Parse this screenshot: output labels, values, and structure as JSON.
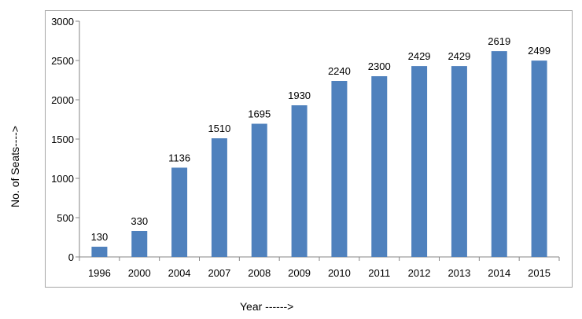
{
  "chart_data": {
    "type": "bar",
    "categories": [
      "1996",
      "2000",
      "2004",
      "2007",
      "2008",
      "2009",
      "2010",
      "2011",
      "2012",
      "2013",
      "2014",
      "2015"
    ],
    "values": [
      130,
      330,
      1136,
      1510,
      1695,
      1930,
      2240,
      2300,
      2429,
      2429,
      2619,
      2499
    ],
    "data_labels": [
      "130",
      "330",
      "1136",
      "1510",
      "1695",
      "1930",
      "2240",
      "2300",
      "2429",
      "2429",
      "2619",
      "2499"
    ],
    "xlabel": "Year ------>",
    "ylabel": "No. of Seats---->",
    "ylim": [
      0,
      3000
    ],
    "yticks": [
      "0",
      "500",
      "1000",
      "1500",
      "2000",
      "2500",
      "3000"
    ],
    "grid": false,
    "legend": "none",
    "bar_color": "#4f81bd"
  }
}
